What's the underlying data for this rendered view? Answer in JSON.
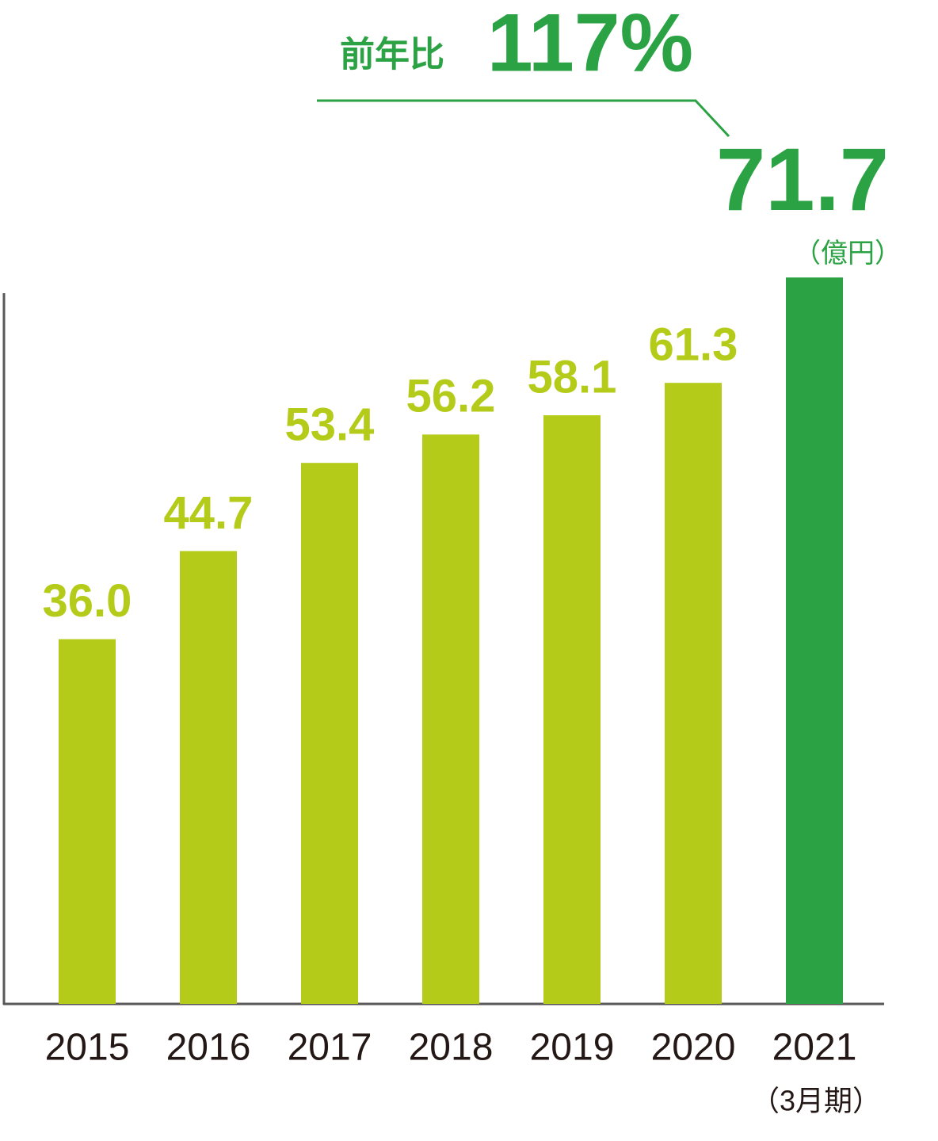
{
  "chart_data": {
    "type": "bar",
    "categories": [
      "2015",
      "2016",
      "2017",
      "2018",
      "2019",
      "2020",
      "2021"
    ],
    "category_note": "（3月期）",
    "values": [
      36.0,
      44.7,
      53.4,
      56.2,
      58.1,
      61.3,
      71.7
    ],
    "value_labels": [
      "36.0",
      "44.7",
      "53.4",
      "56.2",
      "58.1",
      "61.3",
      "71.7"
    ],
    "colors": [
      "#b5cb19",
      "#b5cb19",
      "#b5cb19",
      "#b5cb19",
      "#b5cb19",
      "#b5cb19",
      "#2ba243"
    ],
    "unit": "（億円）",
    "annotation": {
      "label": "前年比",
      "value": "117%",
      "color": "#2ba243"
    },
    "ylim": [
      0,
      75
    ]
  }
}
